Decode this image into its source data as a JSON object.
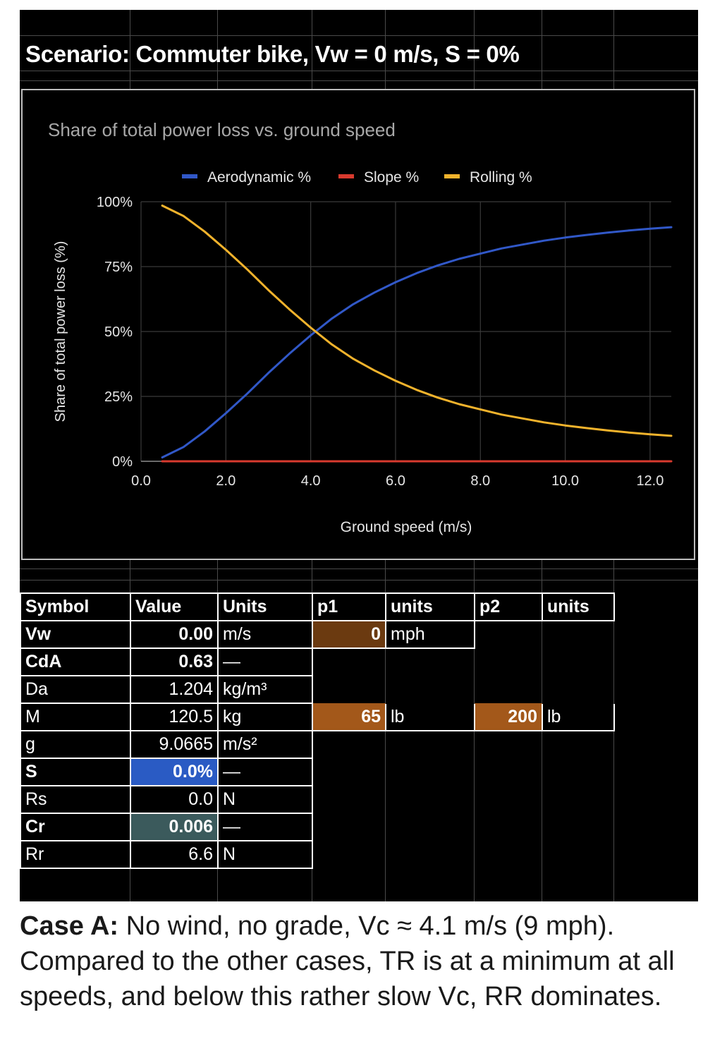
{
  "title": "Scenario: Commuter bike, Vw = 0 m/s, S = 0%",
  "chart_data": {
    "type": "line",
    "title": "Share of total power loss vs. ground speed",
    "xlabel": "Ground speed (m/s)",
    "ylabel": "Share of total power loss (%)",
    "xlim": [
      0,
      12.5
    ],
    "ylim": [
      0,
      100
    ],
    "xticks": [
      "0.0",
      "2.0",
      "4.0",
      "6.0",
      "8.0",
      "10.0",
      "12.0"
    ],
    "yticks": [
      "0%",
      "25%",
      "50%",
      "75%",
      "100%"
    ],
    "legend": [
      "Aerodynamic %",
      "Slope %",
      "Rolling %"
    ],
    "colors": {
      "aero": "#3158c8",
      "slope": "#d83a2e",
      "rolling": "#f2b32c"
    },
    "x": [
      0.5,
      1.0,
      1.5,
      2.0,
      2.5,
      3.0,
      3.5,
      4.0,
      4.5,
      5.0,
      5.5,
      6.0,
      6.5,
      7.0,
      7.5,
      8.0,
      8.5,
      9.0,
      9.5,
      10.0,
      10.5,
      11.0,
      11.5,
      12.0,
      12.5
    ],
    "series": [
      {
        "name": "Aerodynamic %",
        "values": [
          1.5,
          5.5,
          11.5,
          18.5,
          26,
          34,
          41.5,
          48.5,
          55,
          60.5,
          65,
          69,
          72.5,
          75.5,
          78,
          80,
          82,
          83.5,
          85,
          86.2,
          87.2,
          88.1,
          88.9,
          89.6,
          90.2
        ]
      },
      {
        "name": "Slope %",
        "values": [
          0,
          0,
          0,
          0,
          0,
          0,
          0,
          0,
          0,
          0,
          0,
          0,
          0,
          0,
          0,
          0,
          0,
          0,
          0,
          0,
          0,
          0,
          0,
          0,
          0
        ]
      },
      {
        "name": "Rolling %",
        "values": [
          98.5,
          94.5,
          88.5,
          81.5,
          74,
          66,
          58.5,
          51.5,
          45,
          39.5,
          35,
          31,
          27.5,
          24.5,
          22,
          20,
          18,
          16.5,
          15,
          13.8,
          12.8,
          11.9,
          11.1,
          10.4,
          9.8
        ]
      }
    ]
  },
  "table": {
    "headers": [
      "Symbol",
      "Value",
      "Units",
      "p1",
      "units",
      "p2",
      "units"
    ],
    "rows": [
      {
        "symbol": "Vw",
        "value": "0.00",
        "units": "m/s",
        "p1": "0",
        "p1_units": "mph",
        "p2": "",
        "p2_units": ""
      },
      {
        "symbol": "CdA",
        "value": "0.63",
        "units": "—"
      },
      {
        "symbol": "Da",
        "value": "1.204",
        "units": "kg/m³"
      },
      {
        "symbol": "M",
        "value": "120.5",
        "units": "kg",
        "p1": "65",
        "p1_units": "lb",
        "p2": "200",
        "p2_units": "lb"
      },
      {
        "symbol": "g",
        "value": "9.0665",
        "units": "m/s²"
      },
      {
        "symbol": "S",
        "value": "0.0%",
        "units": "—"
      },
      {
        "symbol": "Rs",
        "value": "0.0",
        "units": "N"
      },
      {
        "symbol": "Cr",
        "value": "0.006",
        "units": "—"
      },
      {
        "symbol": "Rr",
        "value": "6.6",
        "units": "N"
      }
    ]
  },
  "cell_colors": {
    "input_orange_dark": "#6b3a10",
    "input_orange": "#a3581a",
    "slope_blue": "#2a5bc4",
    "cr_teal": "#3b5a5c"
  },
  "caption": {
    "label": "Case A:",
    "text": " No wind, no grade, Vc ≈ 4.1 m/s (9 mph). Compared to the other cases, TR is at a minimum at all speeds, and below this rather slow Vc, RR dominates."
  }
}
